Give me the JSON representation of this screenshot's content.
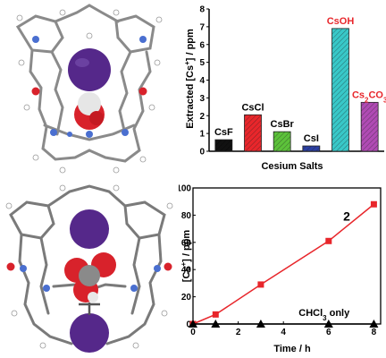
{
  "chart_data": [
    {
      "type": "bar",
      "title": "",
      "xlabel": "Cesium Salts",
      "ylabel_parts": [
        "Extracted [Cs",
        "+",
        "] / ppm"
      ],
      "ylim": [
        0,
        8
      ],
      "yticks": [
        "0",
        "1",
        "2",
        "3",
        "4",
        "5",
        "6",
        "7",
        "8"
      ],
      "grid": false,
      "categories": [
        "CsF",
        "CsCl",
        "CsBr",
        "CsI",
        "CsOH",
        "Cs2CO3"
      ],
      "category_labels": [
        {
          "parts": [
            "CsF"
          ],
          "color": "#000000"
        },
        {
          "parts": [
            "CsCl"
          ],
          "color": "#000000"
        },
        {
          "parts": [
            "CsBr"
          ],
          "color": "#000000"
        },
        {
          "parts": [
            "CsI"
          ],
          "color": "#000000"
        },
        {
          "parts": [
            "CsOH"
          ],
          "color": "#e8262b"
        },
        {
          "parts": [
            "Cs",
            "2",
            "CO",
            "3"
          ],
          "color": "#e8262b"
        }
      ],
      "values": [
        0.65,
        2.05,
        1.1,
        0.3,
        6.9,
        2.75
      ],
      "fill_colors": [
        "#111111",
        "#e8262b",
        "#5cc23a",
        "#2b3fa3",
        "#38c8c8",
        "#b04bb4"
      ]
    },
    {
      "type": "line",
      "title": "",
      "xlabel": "Time / h",
      "ylabel_parts": [
        "[Cs",
        "+",
        "] / ppm"
      ],
      "xlim": [
        0,
        8.3
      ],
      "ylim": [
        0,
        100
      ],
      "xticks": [
        "0",
        "2",
        "4",
        "6",
        "8"
      ],
      "yticks": [
        "0",
        "20",
        "40",
        "60",
        "80",
        "100"
      ],
      "grid": false,
      "series": [
        {
          "name": "2",
          "color": "#e8262b",
          "marker": "square",
          "x": [
            0,
            1,
            3,
            6,
            8
          ],
          "y": [
            0,
            7,
            29,
            61,
            88
          ]
        },
        {
          "name_parts": [
            "CHCl",
            "3",
            " only"
          ],
          "color": "#000000",
          "marker": "triangle",
          "x": [
            0,
            1,
            3,
            6,
            8
          ],
          "y": [
            0,
            0,
            0,
            0,
            0
          ]
        }
      ]
    }
  ]
}
